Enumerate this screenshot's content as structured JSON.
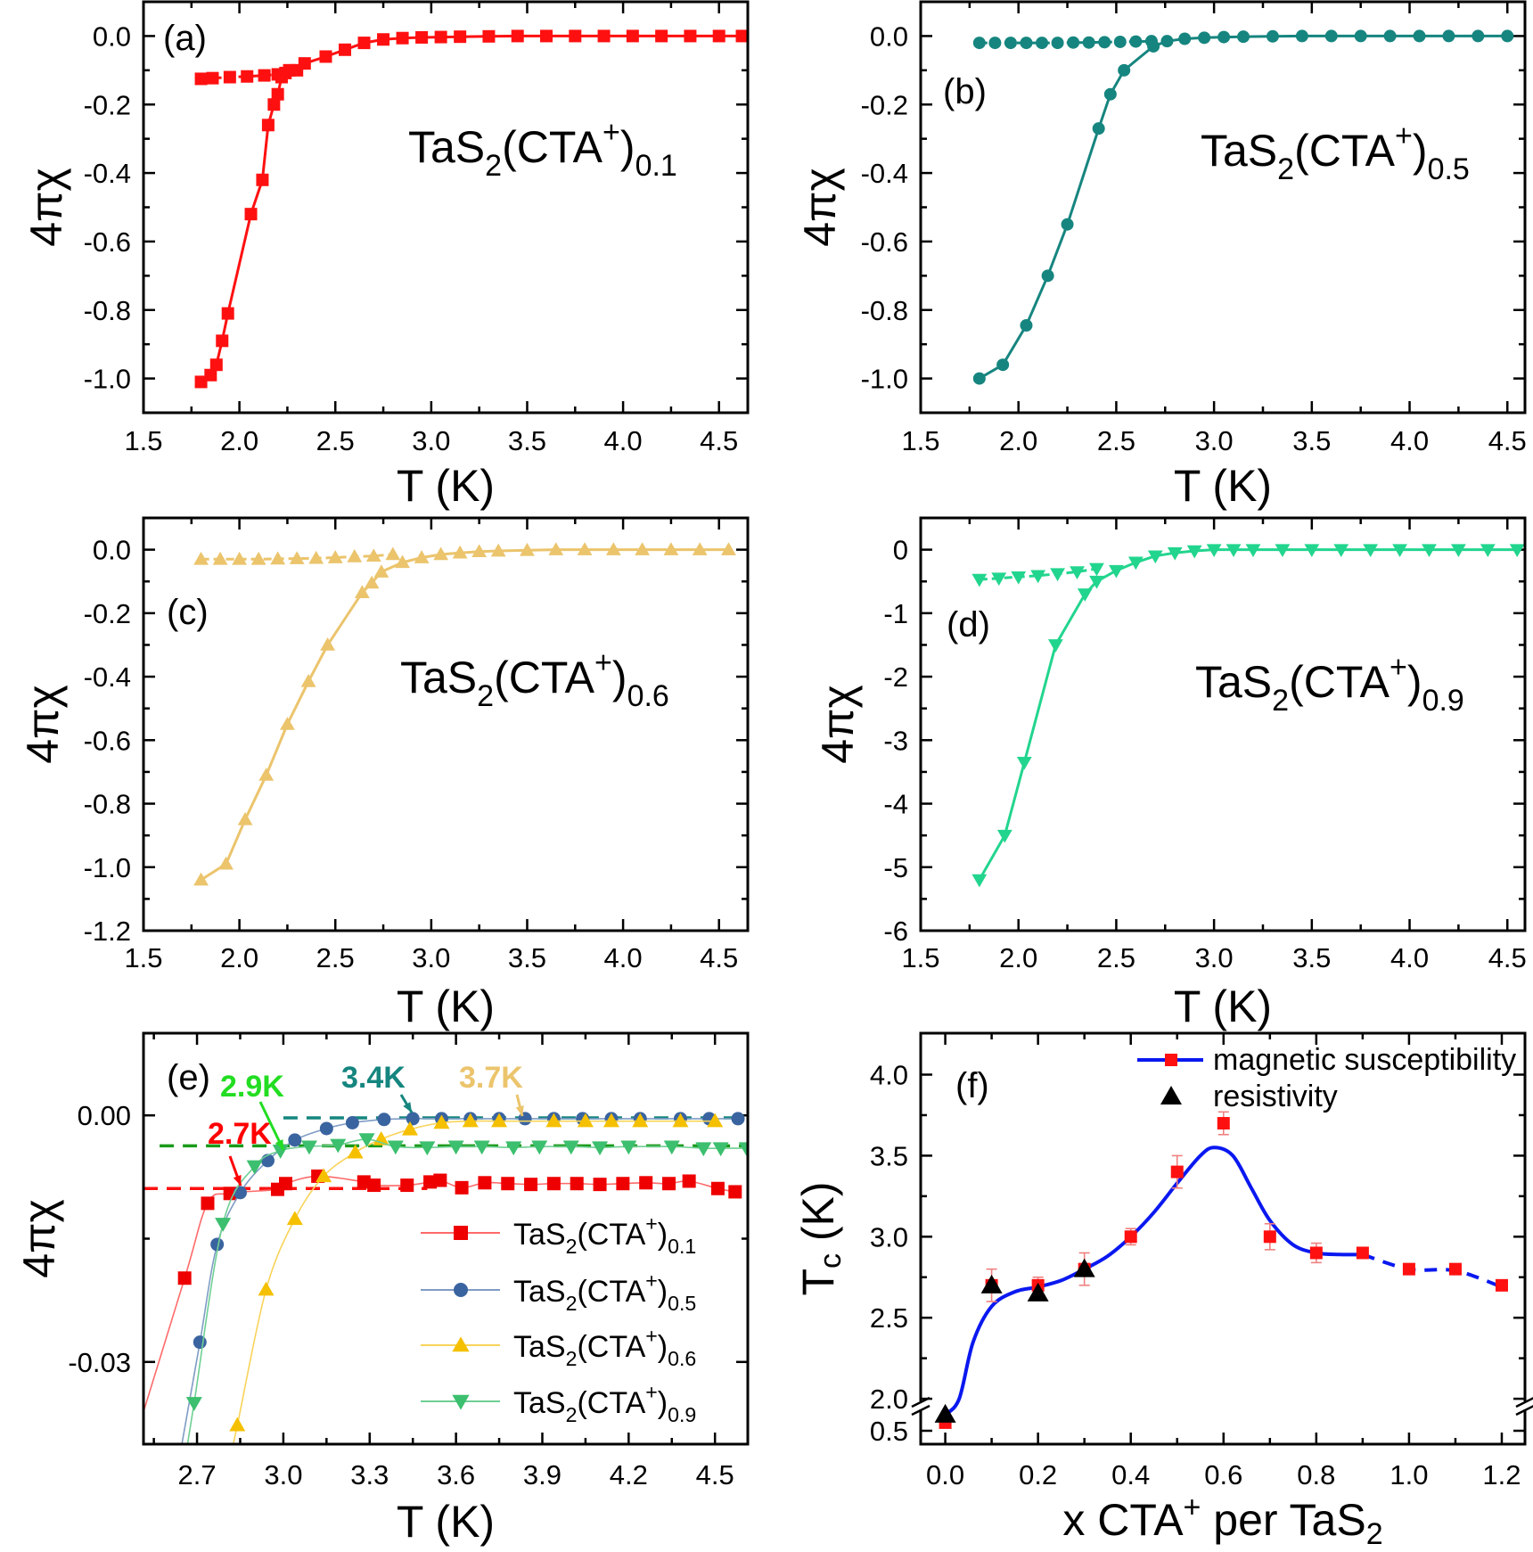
{
  "chart_data": [
    {
      "type": "line",
      "panel_label": "(a)",
      "xlabel": "T (K)",
      "ylabel": "4πχ",
      "xlim": [
        1.5,
        4.65
      ],
      "ylim": [
        -1.1,
        0.1
      ],
      "xticks": [
        1.5,
        2.0,
        2.5,
        3.0,
        3.5,
        4.0,
        4.5
      ],
      "xtick_labels": [
        "1.5",
        "2.0",
        "2.5",
        "3.0",
        "3.5",
        "4.0",
        "4.5"
      ],
      "yticks": [
        0.0,
        -0.2,
        -0.4,
        -0.6,
        -0.8,
        -1.0
      ],
      "ytick_labels": [
        "0.0",
        "-0.2",
        "-0.4",
        "-0.6",
        "-0.8",
        "-1.0"
      ],
      "annotation": {
        "pre": "TaS",
        "s1": "2",
        "mid": "(CTA",
        "sup": "+",
        "post": ")",
        "s2": "0.1"
      },
      "color": "#ff1010",
      "series": [
        {
          "marker": "square",
          "line": "solid",
          "x": [
            1.8,
            1.85,
            1.88,
            1.91,
            1.94,
            2.06,
            2.12,
            2.15,
            2.18,
            2.2,
            2.22,
            2.26,
            2.34,
            2.45,
            2.55,
            2.65,
            2.75,
            2.85,
            2.95,
            3.05,
            3.15,
            3.3,
            3.45,
            3.6,
            3.75,
            3.9,
            4.05,
            4.2,
            4.35,
            4.5,
            4.62
          ],
          "y": [
            -1.01,
            -0.99,
            -0.96,
            -0.89,
            -0.81,
            -0.52,
            -0.42,
            -0.26,
            -0.2,
            -0.17,
            -0.12,
            -0.1,
            -0.08,
            -0.06,
            -0.04,
            -0.02,
            -0.01,
            -0.006,
            -0.004,
            -0.003,
            -0.002,
            -0.001,
            0,
            0,
            0,
            0,
            0,
            0,
            0,
            0,
            0
          ]
        },
        {
          "marker": "square",
          "line": "dashed",
          "x": [
            1.8,
            1.86,
            1.95,
            2.04,
            2.13,
            2.2,
            2.24,
            2.3
          ],
          "y": [
            -0.125,
            -0.123,
            -0.12,
            -0.118,
            -0.115,
            -0.112,
            -0.108,
            -0.1
          ]
        }
      ]
    },
    {
      "type": "line",
      "panel_label": "(b)",
      "xlabel": "T (K)",
      "ylabel": "4πχ",
      "xlim": [
        1.5,
        4.59
      ],
      "ylim": [
        -1.1,
        0.1
      ],
      "xticks": [
        1.5,
        2.0,
        2.5,
        3.0,
        3.5,
        4.0,
        4.5
      ],
      "xtick_labels": [
        "1.5",
        "2.0",
        "2.5",
        "3.0",
        "3.5",
        "4.0",
        "4.5"
      ],
      "yticks": [
        0.0,
        -0.2,
        -0.4,
        -0.6,
        -0.8,
        -1.0
      ],
      "ytick_labels": [
        "0.0",
        "-0.2",
        "-0.4",
        "-0.6",
        "-0.8",
        "-1.0"
      ],
      "annotation": {
        "pre": "TaS",
        "s1": "2",
        "mid": "(CTA",
        "sup": "+",
        "post": ")",
        "s2": "0.5"
      },
      "color": "#16857f",
      "series": [
        {
          "marker": "circle",
          "line": "solid",
          "x": [
            1.8,
            1.92,
            2.04,
            2.15,
            2.25,
            2.41,
            2.47,
            2.54,
            2.69,
            2.76,
            2.85,
            2.95,
            3.05,
            3.15,
            3.3,
            3.45,
            3.6,
            3.75,
            3.9,
            4.05,
            4.2,
            4.35,
            4.5
          ],
          "y": [
            -1.0,
            -0.96,
            -0.845,
            -0.7,
            -0.55,
            -0.27,
            -0.17,
            -0.1,
            -0.03,
            -0.015,
            -0.008,
            -0.005,
            -0.003,
            -0.002,
            -0.001,
            0,
            0,
            0,
            0,
            0,
            0,
            0,
            0
          ]
        },
        {
          "marker": "circle",
          "line": "dashed",
          "x": [
            1.8,
            1.88,
            1.96,
            2.04,
            2.12,
            2.2,
            2.28,
            2.36,
            2.44,
            2.52,
            2.6,
            2.68
          ],
          "y": [
            -0.02,
            -0.02,
            -0.02,
            -0.02,
            -0.02,
            -0.02,
            -0.019,
            -0.019,
            -0.018,
            -0.017,
            -0.016,
            -0.015
          ]
        }
      ]
    },
    {
      "type": "line",
      "panel_label": "(c)",
      "xlabel": "T (K)",
      "ylabel": "4πχ",
      "xlim": [
        1.5,
        4.65
      ],
      "ylim": [
        -1.2,
        0.1
      ],
      "xticks": [
        1.5,
        2.0,
        2.5,
        3.0,
        3.5,
        4.0,
        4.5
      ],
      "xtick_labels": [
        "1.5",
        "2.0",
        "2.5",
        "3.0",
        "3.5",
        "4.0",
        "4.5"
      ],
      "yticks": [
        0.0,
        -0.2,
        -0.4,
        -0.6,
        -0.8,
        -1.0,
        -1.2
      ],
      "ytick_labels": [
        "0.0",
        "-0.2",
        "-0.4",
        "-0.6",
        "-0.8",
        "-1.0",
        "-1.2"
      ],
      "annotation": {
        "pre": "TaS",
        "s1": "2",
        "mid": "(CTA",
        "sup": "+",
        "post": ")",
        "s2": "0.6"
      },
      "color": "#ebc46c",
      "series": [
        {
          "marker": "triangle-up",
          "line": "solid",
          "x": [
            1.8,
            1.93,
            2.03,
            2.14,
            2.25,
            2.36,
            2.46,
            2.64,
            2.69,
            2.74,
            2.85,
            2.95,
            3.05,
            3.15,
            3.25,
            3.35,
            3.5,
            3.65,
            3.8,
            3.95,
            4.1,
            4.25,
            4.4,
            4.55
          ],
          "y": [
            -1.04,
            -0.99,
            -0.85,
            -0.71,
            -0.55,
            -0.415,
            -0.3,
            -0.135,
            -0.105,
            -0.07,
            -0.04,
            -0.025,
            -0.015,
            -0.01,
            -0.006,
            -0.004,
            -0.002,
            0,
            0,
            0,
            0,
            0,
            0,
            0
          ]
        },
        {
          "marker": "triangle-up",
          "line": "dashed",
          "x": [
            1.8,
            1.9,
            2.0,
            2.1,
            2.2,
            2.3,
            2.4,
            2.5,
            2.6,
            2.7,
            2.8
          ],
          "y": [
            -0.03,
            -0.03,
            -0.03,
            -0.03,
            -0.029,
            -0.028,
            -0.027,
            -0.025,
            -0.022,
            -0.02,
            -0.015
          ]
        }
      ]
    },
    {
      "type": "line",
      "panel_label": "(d)",
      "xlabel": "T (K)",
      "ylabel": "4πχ",
      "xlim": [
        1.5,
        4.59
      ],
      "ylim": [
        -6,
        0.5
      ],
      "xticks": [
        1.5,
        2.0,
        2.5,
        3.0,
        3.5,
        4.0,
        4.5
      ],
      "xtick_labels": [
        "1.5",
        "2.0",
        "2.5",
        "3.0",
        "3.5",
        "4.0",
        "4.5"
      ],
      "yticks": [
        0,
        -1,
        -2,
        -3,
        -4,
        -5,
        -6
      ],
      "ytick_labels": [
        "0",
        "-1",
        "-2",
        "-3",
        "-4",
        "-5",
        "-6"
      ],
      "annotation": {
        "pre": "TaS",
        "s1": "2",
        "mid": "(CTA",
        "sup": "+",
        "post": ")",
        "s2": "0.9"
      },
      "color": "#22d58e",
      "series": [
        {
          "marker": "triangle-down",
          "line": "solid",
          "x": [
            1.8,
            1.93,
            2.03,
            2.19,
            2.34,
            2.4,
            2.5,
            2.6,
            2.7,
            2.8,
            2.9,
            3.0,
            3.1,
            3.2,
            3.35,
            3.5,
            3.65,
            3.8,
            3.95,
            4.1,
            4.25,
            4.4,
            4.55
          ],
          "y": [
            -5.2,
            -4.5,
            -3.35,
            -1.5,
            -0.7,
            -0.5,
            -0.33,
            -0.2,
            -0.1,
            -0.05,
            -0.02,
            0,
            0,
            0,
            0,
            0,
            0,
            0,
            0,
            0,
            0,
            0,
            0
          ]
        },
        {
          "marker": "triangle-down",
          "line": "dashed",
          "x": [
            1.8,
            1.9,
            2.0,
            2.1,
            2.2,
            2.3,
            2.4
          ],
          "y": [
            -0.47,
            -0.45,
            -0.43,
            -0.41,
            -0.38,
            -0.35,
            -0.3
          ]
        }
      ]
    },
    {
      "type": "line",
      "panel_label": "(e)",
      "xlabel": "T (K)",
      "ylabel": "4πχ",
      "xlim": [
        2.514,
        4.614
      ],
      "ylim": [
        -0.04,
        0.01
      ],
      "xticks": [
        2.7,
        3.0,
        3.3,
        3.6,
        3.9,
        4.2,
        4.5
      ],
      "xtick_labels": [
        "2.7",
        "3.0",
        "3.3",
        "3.6",
        "3.9",
        "4.2",
        "4.5"
      ],
      "yticks": [
        0.0,
        -0.03
      ],
      "ytick_labels": [
        "0.00",
        "-0.03"
      ],
      "legend": "right",
      "series": [
        {
          "name": {
            "pre": "TaS",
            "s1": "2",
            "mid": "(CTA",
            "sup": "+",
            "post": ")",
            "s2": "0.1"
          },
          "marker": "square",
          "color": "#ee0000",
          "line_color": "#ff6a6a",
          "tc_label": "2.7K",
          "tc_color": "#ff0000",
          "baseline": -0.0089,
          "x": [
            2.657,
            2.737,
            2.815,
            2.98,
            3.008,
            3.12,
            3.28,
            3.315,
            3.43,
            3.51,
            3.545,
            3.62,
            3.7,
            3.78,
            3.86,
            3.94,
            4.02,
            4.1,
            4.18,
            4.26,
            4.34,
            4.41,
            4.51,
            4.57
          ],
          "y": [
            -0.0198,
            -0.0107,
            -0.0095,
            -0.009,
            -0.0083,
            -0.0074,
            -0.0081,
            -0.0085,
            -0.0085,
            -0.0081,
            -0.0079,
            -0.0088,
            -0.0082,
            -0.0083,
            -0.0084,
            -0.0083,
            -0.0083,
            -0.0084,
            -0.0083,
            -0.0082,
            -0.0083,
            -0.008,
            -0.0089,
            -0.0093
          ]
        },
        {
          "name": {
            "pre": "TaS",
            "s1": "2",
            "mid": "(CTA",
            "sup": "+",
            "post": ")",
            "s2": "0.5"
          },
          "marker": "circle",
          "color": "#3a64a0",
          "line_color": "#7f9cc4",
          "tc_label": "3.4K",
          "tc_color": "#15857f",
          "baseline": -0.0003,
          "x": [
            2.71,
            2.77,
            2.85,
            2.946,
            3.04,
            3.15,
            3.24,
            3.35,
            3.45,
            3.55,
            3.65,
            3.75,
            3.84,
            3.94,
            4.04,
            4.14,
            4.24,
            4.38,
            4.48,
            4.58
          ],
          "y": [
            -0.0276,
            -0.0157,
            -0.0094,
            -0.0055,
            -0.003,
            -0.0016,
            -0.0009,
            -0.0005,
            -0.0004,
            -0.0004,
            -0.0004,
            -0.0004,
            -0.0004,
            -0.0004,
            -0.0004,
            -0.0004,
            -0.0004,
            -0.0004,
            -0.0004,
            -0.0004
          ]
        },
        {
          "name": {
            "pre": "TaS",
            "s1": "2",
            "mid": "(CTA",
            "sup": "+",
            "post": ")",
            "s2": "0.6"
          },
          "marker": "triangle-up",
          "color": "#f5c000",
          "line_color": "#f8d35a",
          "tc_label": "3.7K",
          "tc_color": "#ebc46c",
          "x": [
            2.84,
            2.94,
            3.04,
            3.14,
            3.25,
            3.34,
            3.44,
            3.55,
            3.65,
            3.75,
            3.94,
            4.05,
            4.14,
            4.24,
            4.38,
            4.5
          ],
          "y": [
            -0.0377,
            -0.0212,
            -0.0126,
            -0.0074,
            -0.0045,
            -0.0029,
            -0.0017,
            -0.0009,
            -0.0007,
            -0.0007,
            -0.0007,
            -0.0007,
            -0.0007,
            -0.0007,
            -0.0007,
            -0.0007
          ]
        },
        {
          "name": {
            "pre": "TaS",
            "s1": "2",
            "mid": "(CTA",
            "sup": "+",
            "post": ")",
            "s2": "0.9"
          },
          "marker": "triangle-down",
          "color": "#3cbf6e",
          "line_color": "#6fcf94",
          "tc_label": "2.9K",
          "tc_color": "#22dd22",
          "baseline": -0.0037,
          "baseline_color": "#1a9a1a",
          "x": [
            2.69,
            2.79,
            2.9,
            2.99,
            3.09,
            3.19,
            3.29,
            3.39,
            3.5,
            3.6,
            3.69,
            3.8,
            3.89,
            4.0,
            4.1,
            4.2,
            4.35,
            4.46,
            4.52,
            4.61
          ],
          "y": [
            -0.035,
            -0.0132,
            -0.0062,
            -0.0043,
            -0.0038,
            -0.0036,
            -0.0029,
            -0.0038,
            -0.0039,
            -0.0038,
            -0.0038,
            -0.0039,
            -0.0038,
            -0.0038,
            -0.0039,
            -0.0038,
            -0.0038,
            -0.004,
            -0.004,
            -0.004
          ]
        }
      ]
    },
    {
      "type": "scatter",
      "panel_label": "(f)",
      "xlabel": "x CTA",
      "xlabel_sup": "+",
      "xlabel_rest": " per TaS",
      "xlabel_sub": "2",
      "ylabel": "T",
      "ylabel_sub": "c",
      "ylabel_rest": " (K)",
      "xlim": [
        -0.053,
        1.25
      ],
      "ylim": [
        0.42,
        4.256
      ],
      "y_axis_break": [
        0.75,
        1.95
      ],
      "xticks": [
        0.0,
        0.2,
        0.4,
        0.6,
        0.8,
        1.0,
        1.2
      ],
      "xtick_labels": [
        "0.0",
        "0.2",
        "0.4",
        "0.6",
        "0.8",
        "1.0",
        "1.2"
      ],
      "yticks": [
        0.5,
        2.0,
        2.5,
        3.0,
        3.5,
        4.0
      ],
      "ytick_labels": [
        "0.5",
        "2.0",
        "2.5",
        "3.0",
        "3.5",
        "4.0"
      ],
      "legend": "top-right",
      "series": [
        {
          "name": "magnetic susceptibility",
          "marker": "square",
          "color": "#ff1010",
          "err_color": "#f08080",
          "line_color": "#0a18f0",
          "x": [
            0.0,
            0.1,
            0.2,
            0.3,
            0.4,
            0.5,
            0.6,
            0.7,
            0.8,
            0.9,
            1.0,
            1.1,
            1.2
          ],
          "y": [
            0.55,
            2.7,
            2.7,
            2.8,
            3.0,
            3.4,
            3.7,
            3.0,
            2.9,
            2.9,
            2.8,
            2.8,
            2.7
          ],
          "yerr": [
            0,
            0.1,
            0.05,
            0.1,
            0.05,
            0.1,
            0.07,
            0.08,
            0.06,
            0,
            0,
            0,
            0
          ],
          "fit_x": [
            0.0,
            0.03,
            0.06,
            0.1,
            0.15,
            0.2,
            0.25,
            0.3,
            0.35,
            0.4,
            0.45,
            0.5,
            0.55,
            0.58,
            0.62,
            0.66,
            0.7,
            0.75,
            0.8,
            0.85,
            0.9
          ],
          "fit_y": [
            0.6,
            2.0,
            2.35,
            2.57,
            2.66,
            2.69,
            2.73,
            2.8,
            2.88,
            3.0,
            3.15,
            3.33,
            3.5,
            3.55,
            3.5,
            3.3,
            3.1,
            2.95,
            2.9,
            2.89,
            2.89
          ],
          "dashed_x": [
            0.9,
            1.0,
            1.1,
            1.2
          ],
          "dashed_y": [
            2.89,
            2.8,
            2.79,
            2.69
          ]
        },
        {
          "name": "resistivity",
          "marker": "triangle-up",
          "color": "#000000",
          "x": [
            0.0,
            0.1,
            0.2,
            0.3
          ],
          "y": [
            0.6,
            2.7,
            2.65,
            2.8
          ]
        }
      ]
    }
  ]
}
